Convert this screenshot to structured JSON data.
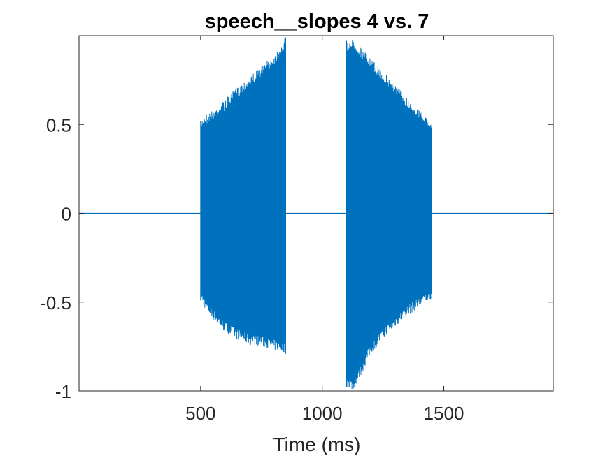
{
  "chart_data": {
    "type": "line",
    "title": "speech__slopes 4 vs. 7",
    "xlabel": "Time (ms)",
    "ylabel": "",
    "xlim": [
      0,
      1950
    ],
    "ylim": [
      -1,
      1
    ],
    "xticks": [
      500,
      1000,
      1500
    ],
    "xtick_labels": [
      "500",
      "1000",
      "1500"
    ],
    "yticks": [
      -1,
      -0.5,
      0,
      0.5
    ],
    "ytick_labels": [
      "-1",
      "-0.5",
      "0",
      "0.5"
    ],
    "grid": false,
    "line_color": "#0072BD",
    "series": [
      {
        "segments": [
          {
            "x_start": 500,
            "x_end": 850,
            "envelope_max": [
              [
                500,
                0.52
              ],
              [
                510,
                0.55
              ],
              [
                550,
                0.58
              ],
              [
                600,
                0.64
              ],
              [
                650,
                0.71
              ],
              [
                700,
                0.77
              ],
              [
                750,
                0.83
              ],
              [
                800,
                0.89
              ],
              [
                850,
                0.99
              ]
            ],
            "envelope_min": [
              [
                500,
                -0.49
              ],
              [
                510,
                -0.52
              ],
              [
                550,
                -0.6
              ],
              [
                600,
                -0.67
              ],
              [
                650,
                -0.71
              ],
              [
                700,
                -0.74
              ],
              [
                750,
                -0.75
              ],
              [
                800,
                -0.77
              ],
              [
                850,
                -0.79
              ]
            ],
            "dense_max": [
              [
                500,
                0.45
              ],
              [
                850,
                0.85
              ]
            ],
            "dense_min": [
              [
                500,
                -0.4
              ],
              [
                850,
                -0.62
              ]
            ]
          },
          {
            "x_start": 1100,
            "x_end": 1450,
            "envelope_max": [
              [
                1100,
                0.97
              ],
              [
                1130,
                0.98
              ],
              [
                1200,
                0.87
              ],
              [
                1250,
                0.8
              ],
              [
                1300,
                0.73
              ],
              [
                1350,
                0.65
              ],
              [
                1400,
                0.58
              ],
              [
                1450,
                0.5
              ]
            ],
            "envelope_min": [
              [
                1100,
                -0.98
              ],
              [
                1130,
                -1.0
              ],
              [
                1200,
                -0.79
              ],
              [
                1250,
                -0.71
              ],
              [
                1300,
                -0.64
              ],
              [
                1350,
                -0.58
              ],
              [
                1400,
                -0.53
              ],
              [
                1450,
                -0.48
              ]
            ],
            "dense_max": [
              [
                1100,
                0.88
              ],
              [
                1450,
                0.48
              ]
            ],
            "dense_min": [
              [
                1100,
                -0.63
              ],
              [
                1450,
                -0.45
              ]
            ]
          }
        ]
      }
    ]
  }
}
